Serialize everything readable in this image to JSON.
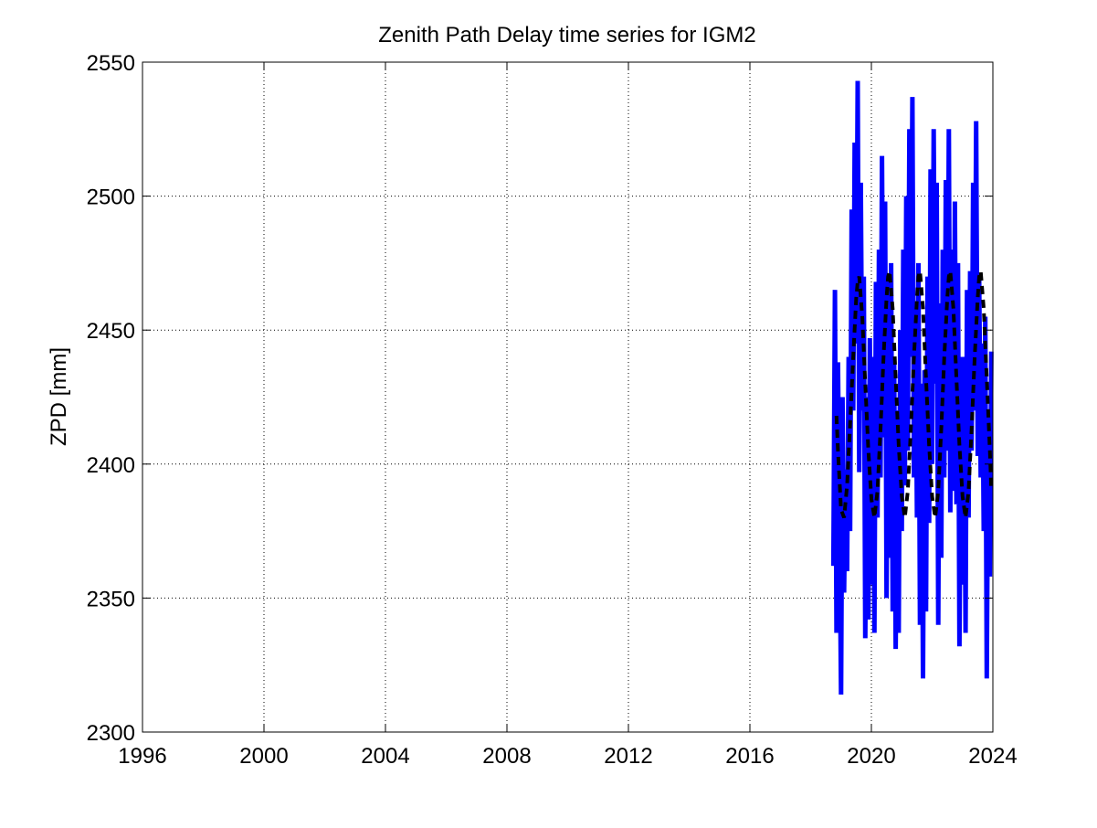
{
  "chart_data": {
    "type": "line",
    "title": "Zenith Path Delay time series for IGM2",
    "xlabel": "",
    "ylabel": "ZPD [mm]",
    "xlim": [
      1996,
      2024
    ],
    "ylim": [
      2300,
      2550
    ],
    "grid": true,
    "x_ticks": [
      1996,
      2000,
      2004,
      2008,
      2012,
      2016,
      2020,
      2024
    ],
    "y_ticks": [
      2300,
      2350,
      2400,
      2450,
      2500,
      2550
    ],
    "colors": {
      "observed": "#0000ff",
      "model": "#000000"
    },
    "series": [
      {
        "style": "solid",
        "x": [
          2018.75,
          2018.8,
          2018.85,
          2018.9,
          2018.95,
          2019.0,
          2019.05,
          2019.1,
          2019.15,
          2019.2,
          2019.25,
          2019.3,
          2019.35,
          2019.4,
          2019.45,
          2019.5,
          2019.55,
          2019.6,
          2019.65,
          2019.7,
          2019.75,
          2019.8,
          2019.85,
          2019.9,
          2019.95,
          2020.0,
          2020.05,
          2020.1,
          2020.15,
          2020.2,
          2020.25,
          2020.3,
          2020.35,
          2020.4,
          2020.45,
          2020.5,
          2020.55,
          2020.6,
          2020.65,
          2020.7,
          2020.75,
          2020.8,
          2020.85,
          2020.9,
          2020.95,
          2021.0,
          2021.05,
          2021.1,
          2021.15,
          2021.2,
          2021.25,
          2021.3,
          2021.35,
          2021.4,
          2021.45,
          2021.5,
          2021.55,
          2021.6,
          2021.65,
          2021.7,
          2021.75,
          2021.8,
          2021.85,
          2021.9,
          2021.95,
          2022.0,
          2022.05,
          2022.1,
          2022.15,
          2022.2,
          2022.25,
          2022.3,
          2022.35,
          2022.4,
          2022.45,
          2022.5,
          2022.55,
          2022.6,
          2022.65,
          2022.7,
          2022.75,
          2022.8,
          2022.85,
          2022.9,
          2022.95,
          2023.0,
          2023.05,
          2023.1,
          2023.15,
          2023.2,
          2023.25,
          2023.3,
          2023.35,
          2023.4,
          2023.45,
          2023.5,
          2023.55,
          2023.6,
          2023.65,
          2023.7,
          2023.75,
          2023.8,
          2023.85,
          2023.9,
          2023.95
        ],
        "y": [
          2362,
          2465,
          2337,
          2438,
          2378,
          2314,
          2425,
          2352,
          2398,
          2360,
          2440,
          2375,
          2495,
          2420,
          2520,
          2445,
          2543,
          2397,
          2505,
          2420,
          2470,
          2335,
          2425,
          2342,
          2447,
          2355,
          2440,
          2337,
          2468,
          2380,
          2480,
          2395,
          2515,
          2410,
          2498,
          2350,
          2470,
          2365,
          2475,
          2345,
          2440,
          2331,
          2420,
          2337,
          2450,
          2375,
          2480,
          2392,
          2500,
          2405,
          2525,
          2440,
          2537,
          2395,
          2460,
          2380,
          2475,
          2340,
          2430,
          2320,
          2435,
          2345,
          2470,
          2378,
          2510,
          2400,
          2525,
          2430,
          2505,
          2340,
          2460,
          2365,
          2480,
          2395,
          2506,
          2405,
          2525,
          2382,
          2480,
          2390,
          2498,
          2385,
          2475,
          2332,
          2440,
          2355,
          2440,
          2337,
          2465,
          2380,
          2472,
          2405,
          2505,
          2420,
          2528,
          2403,
          2470,
          2395,
          2445,
          2375,
          2455,
          2320,
          2420,
          2358,
          2442
        ]
      },
      {
        "style": "dashed",
        "x": [
          2018.85,
          2018.9,
          2019.0,
          2019.1,
          2019.2,
          2019.3,
          2019.4,
          2019.5,
          2019.55,
          2019.6,
          2019.7,
          2019.8,
          2019.9,
          2020.0,
          2020.1,
          2020.2,
          2020.3,
          2020.4,
          2020.5,
          2020.55,
          2020.6,
          2020.7,
          2020.8,
          2020.9,
          2021.0,
          2021.1,
          2021.2,
          2021.3,
          2021.4,
          2021.5,
          2021.55,
          2021.6,
          2021.7,
          2021.8,
          2021.9,
          2022.0,
          2022.1,
          2022.2,
          2022.3,
          2022.4,
          2022.5,
          2022.55,
          2022.6,
          2022.7,
          2022.8,
          2022.9,
          2023.0,
          2023.1,
          2023.2,
          2023.3,
          2023.4,
          2023.5,
          2023.55,
          2023.6,
          2023.7,
          2023.8,
          2023.9,
          2023.95
        ],
        "y": [
          2418,
          2405,
          2383,
          2380,
          2392,
          2415,
          2440,
          2462,
          2468,
          2470,
          2455,
          2430,
          2405,
          2387,
          2380,
          2390,
          2413,
          2440,
          2462,
          2470,
          2472,
          2458,
          2432,
          2407,
          2388,
          2380,
          2390,
          2413,
          2440,
          2462,
          2470,
          2472,
          2458,
          2432,
          2407,
          2388,
          2380,
          2390,
          2413,
          2440,
          2462,
          2470,
          2472,
          2458,
          2432,
          2407,
          2388,
          2380,
          2390,
          2413,
          2440,
          2462,
          2470,
          2472,
          2458,
          2432,
          2405,
          2390
        ]
      }
    ]
  }
}
